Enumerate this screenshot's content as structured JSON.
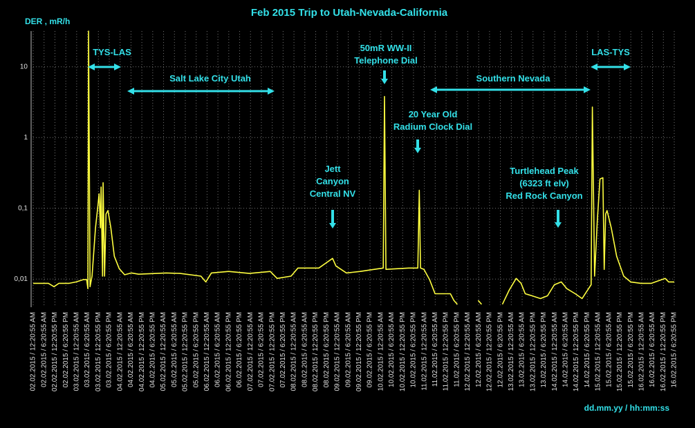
{
  "chart_data": {
    "type": "line",
    "title": "Feb 2015 Trip to Utah-Nevada-California",
    "y_label": "DER , mR/h",
    "x_label": "dd.mm.yy / hh:mm:ss",
    "log_y": true,
    "grid": true,
    "ylim": [
      0.004,
      32
    ],
    "yticks": [
      {
        "value": 0.01,
        "label": "0,01"
      },
      {
        "value": 0.1,
        "label": "0,1"
      },
      1,
      10
    ],
    "xlim": [
      0,
      354
    ],
    "xticks": [
      {
        "value": 0,
        "label": "02.02.2015 / 12:20:55 AM"
      },
      {
        "value": 6,
        "label": "02.02.2015 / 6:20:55 AM"
      },
      {
        "value": 12,
        "label": "02.02.2015 / 12:20:55 PM"
      },
      {
        "value": 18,
        "label": "02.02.2015 / 6:20:55 PM"
      },
      {
        "value": 24,
        "label": "03.02.2015 / 12:20:55 AM"
      },
      {
        "value": 30,
        "label": "03.02.2015 / 6:20:55 AM"
      },
      {
        "value": 36,
        "label": "03.02.2015 / 12:20:55 PM"
      },
      {
        "value": 42,
        "label": "03.02.2015 / 6:20:55 PM"
      },
      {
        "value": 48,
        "label": "04.02.2015 / 12:20:55 AM"
      },
      {
        "value": 54,
        "label": "04.02.2015 / 6:20:55 AM"
      },
      {
        "value": 60,
        "label": "04.02.2015 / 12:20:55 PM"
      },
      {
        "value": 66,
        "label": "04.02.2015 / 6:20:55 PM"
      },
      {
        "value": 72,
        "label": "05.02.2015 / 12:20:55 AM"
      },
      {
        "value": 78,
        "label": "05.02.2015 / 6:20:55 AM"
      },
      {
        "value": 84,
        "label": "05.02.2015 / 12:20:55 PM"
      },
      {
        "value": 90,
        "label": "05.02.2015 / 6:20:55 PM"
      },
      {
        "value": 96,
        "label": "06.02.2015 / 12:20:55 AM"
      },
      {
        "value": 102,
        "label": "06.02.2015 / 6:20:55 AM"
      },
      {
        "value": 108,
        "label": "06.02.2015 / 12:20:55 PM"
      },
      {
        "value": 114,
        "label": "06.02.2015 / 6:20:55 PM"
      },
      {
        "value": 120,
        "label": "07.02.2015 / 12:20:55 AM"
      },
      {
        "value": 126,
        "label": "07.02.2015 / 6:20:55 AM"
      },
      {
        "value": 132,
        "label": "07.02.2015 / 12:20:55 PM"
      },
      {
        "value": 138,
        "label": "07.02.2015 / 6:20:55 PM"
      },
      {
        "value": 144,
        "label": "08.02.2015 / 12:20:55 AM"
      },
      {
        "value": 150,
        "label": "08.02.2015 / 6:20:55 AM"
      },
      {
        "value": 156,
        "label": "08.02.2015 / 12:20:55 PM"
      },
      {
        "value": 162,
        "label": "08.02.2015 / 6:20:55 PM"
      },
      {
        "value": 168,
        "label": "09.02.2015 / 12:20:55 AM"
      },
      {
        "value": 174,
        "label": "09.02.2015 / 6:20:55 AM"
      },
      {
        "value": 180,
        "label": "09.02.2015 / 12:20:55 PM"
      },
      {
        "value": 186,
        "label": "09.02.2015 / 6:20:55 PM"
      },
      {
        "value": 192,
        "label": "10.02.2015 / 12:20:55 AM"
      },
      {
        "value": 198,
        "label": "10.02.2015 / 6:20:55 AM"
      },
      {
        "value": 204,
        "label": "10.02.2015 / 12:20:55 PM"
      },
      {
        "value": 210,
        "label": "10.02.2015 / 6:20:55 PM"
      },
      {
        "value": 216,
        "label": "11.02.2015 / 12:20:55 AM"
      },
      {
        "value": 222,
        "label": "11.02.2015 / 6:20:55 AM"
      },
      {
        "value": 228,
        "label": "11.02.2015 / 12:20:55 PM"
      },
      {
        "value": 234,
        "label": "11.02.2015 / 6:20:55 PM"
      },
      {
        "value": 240,
        "label": "12.02.2015 / 12:20:55 AM"
      },
      {
        "value": 246,
        "label": "12.02.2015 / 6:20:55 AM"
      },
      {
        "value": 252,
        "label": "12.02.2015 / 12:20:55 PM"
      },
      {
        "value": 258,
        "label": "12.02.2015 / 6:20:55 PM"
      },
      {
        "value": 264,
        "label": "13.02.2015 / 12:20:55 AM"
      },
      {
        "value": 270,
        "label": "13.02.2015 / 6:20:55 AM"
      },
      {
        "value": 276,
        "label": "13.02.2015 / 12:20:55 PM"
      },
      {
        "value": 282,
        "label": "13.02.2015 / 6:20:55 PM"
      },
      {
        "value": 288,
        "label": "14.02.2015 / 12:20:55 AM"
      },
      {
        "value": 294,
        "label": "14.02.2015 / 6:20:55 AM"
      },
      {
        "value": 300,
        "label": "14.02.2015 / 12:20:55 PM"
      },
      {
        "value": 306,
        "label": "14.02.2015 / 6:20:55 PM"
      },
      {
        "value": 312,
        "label": "15.02.2015 / 12:20:55 AM"
      },
      {
        "value": 318,
        "label": "15.02.2015 / 6:20:55 AM"
      },
      {
        "value": 324,
        "label": "15.02.2015 / 12:20:55 PM"
      },
      {
        "value": 330,
        "label": "15.02.2015 / 6:20:55 PM"
      },
      {
        "value": 336,
        "label": "16.02.2015 / 12:20:55 AM"
      },
      {
        "value": 342,
        "label": "16.02.2015 / 6:20:55 AM"
      },
      {
        "value": 348,
        "label": "16.02.2015 / 12:20:55 PM"
      },
      {
        "value": 354,
        "label": "16.02.2015 / 6:20:55 PM"
      }
    ],
    "x": [
      0,
      8.4,
      11.5,
      14.2,
      19.9,
      23.7,
      27.6,
      29.5,
      30.2,
      30.6,
      31.4,
      32.5,
      34.4,
      35.6,
      36.4,
      37.1,
      37.5,
      38.3,
      38.6,
      39.4,
      40.2,
      41.3,
      42.9,
      44.8,
      47.5,
      50.5,
      54.3,
      58.2,
      73.5,
      81.1,
      92.6,
      95.3,
      98.4,
      107.9,
      119.4,
      130.9,
      134.7,
      142.4,
      146.2,
      157.7,
      165.3,
      167.2,
      173,
      180.6,
      188.3,
      193.3,
      194,
      194.8,
      207.4,
      212.4,
      213.2,
      213.9,
      215.8,
      218.9,
      221.9,
      230.4,
      232.3,
      234.2,
      240,
      245.7,
      247.6,
      253,
      259.1,
      262.9,
      266.7,
      269.4,
      271.7,
      275.5,
      280.1,
      284,
      287.8,
      291.6,
      294.7,
      299.3,
      303.1,
      306.2,
      308.1,
      308.8,
      310,
      311.5,
      313,
      314.6,
      315.3,
      316.1,
      316.9,
      319.2,
      322.2,
      326.1,
      329.9,
      335.6,
      341.4,
      349,
      350.9,
      354
    ],
    "series": [
      {
        "name": "DER",
        "color": "#ffff40",
        "values": [
          0.0087,
          0.0087,
          0.0078,
          0.0087,
          0.0087,
          0.0091,
          0.0098,
          0.0098,
          0.0073,
          32,
          0.0078,
          0.011,
          0.053,
          0.1,
          0.16,
          0.053,
          0.2,
          0.011,
          0.23,
          0.011,
          0.083,
          0.093,
          0.053,
          0.021,
          0.014,
          0.0115,
          0.0122,
          0.0117,
          0.0122,
          0.012,
          0.011,
          0.0091,
          0.0122,
          0.0128,
          0.012,
          0.0128,
          0.0102,
          0.011,
          0.0143,
          0.0143,
          0.0196,
          0.0153,
          0.0122,
          0.0128,
          0.0137,
          0.0143,
          3.8,
          0.0137,
          0.0143,
          0.0143,
          0.18,
          0.0143,
          0.0137,
          0.0098,
          0.0062,
          0.0062,
          0.005,
          0.0044,
          null,
          0.005,
          0.0044,
          null,
          0.0044,
          0.007,
          0.0102,
          0.0087,
          0.0062,
          0.0058,
          0.0053,
          0.0058,
          0.0083,
          0.0091,
          0.0073,
          0.0062,
          0.0053,
          0.007,
          0.0083,
          2.7,
          0.011,
          0.066,
          0.26,
          0.27,
          0.0137,
          0.083,
          0.093,
          0.053,
          0.021,
          0.011,
          0.0091,
          0.0087,
          0.0087,
          0.0102,
          0.0091,
          0.0091
        ]
      }
    ],
    "annotations": [
      {
        "text": [
          "TYS-LAS"
        ]
      },
      {
        "text": [
          "Salt Lake City Utah"
        ]
      },
      {
        "text": [
          "50mR WW-II",
          "Telephone Dial"
        ]
      },
      {
        "text": [
          "Southern Nevada"
        ]
      },
      {
        "text": [
          "LAS-TYS"
        ]
      },
      {
        "text": [
          "20 Year Old",
          "Radium Clock Dial"
        ]
      },
      {
        "text": [
          "Jett",
          "Canyon",
          "Central NV"
        ]
      },
      {
        "text": [
          "Turtlehead Peak",
          "(6323 ft elv)",
          "Red Rock Canyon"
        ]
      }
    ]
  }
}
